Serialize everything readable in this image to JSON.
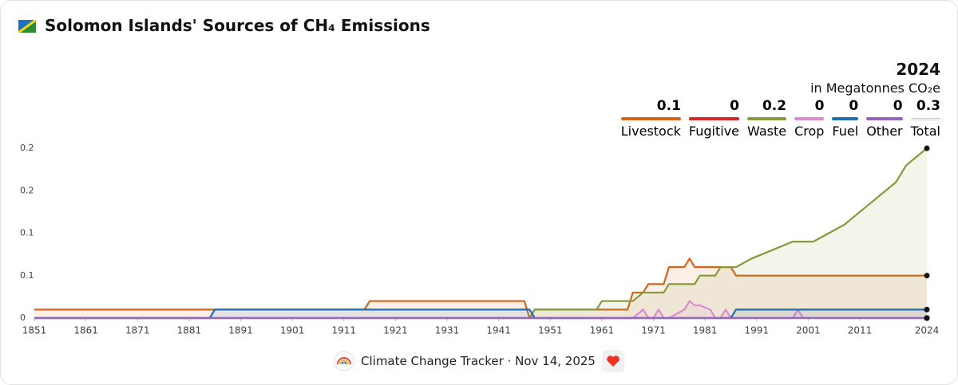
{
  "chart_data": {
    "type": "line",
    "title": "Solomon Islands' Sources of CH₄ Emissions",
    "latest_year": 2024,
    "unit": "in Megatonnes CO₂e",
    "x": [
      1851,
      1885,
      1886,
      1915,
      1916,
      1946,
      1947,
      1948,
      1960,
      1961,
      1966,
      1967,
      1969,
      1970,
      1971,
      1972,
      1973,
      1974,
      1977,
      1978,
      1979,
      1980,
      1982,
      1983,
      1984,
      1985,
      1986,
      1987,
      1990,
      1994,
      1998,
      1999,
      2000,
      2002,
      2005,
      2008,
      2010,
      2012,
      2014,
      2016,
      2018,
      2019,
      2020,
      2022,
      2024
    ],
    "xlim": [
      1851,
      2024
    ],
    "xticks": [
      1851,
      1861,
      1871,
      1881,
      1891,
      1901,
      1911,
      1921,
      1931,
      1941,
      1951,
      1961,
      1971,
      1981,
      1991,
      2001,
      2011,
      2024
    ],
    "ylim": [
      0,
      0.2
    ],
    "yticks": [
      0,
      {
        "value": 0.05,
        "label": "0.1"
      },
      0.1,
      {
        "value": 0.15,
        "label": "0.2"
      },
      0.2
    ],
    "series": [
      {
        "name": "Livestock",
        "color": "#d4661a",
        "latest_label": "0.1",
        "values": [
          0.01,
          0.01,
          0.01,
          0.01,
          0.02,
          0.02,
          0,
          0.01,
          0.01,
          0.01,
          0.01,
          0.03,
          0.03,
          0.04,
          0.04,
          0.04,
          0.04,
          0.06,
          0.06,
          0.07,
          0.06,
          0.06,
          0.06,
          0.06,
          0.06,
          0.06,
          0.06,
          0.05,
          0.05,
          0.05,
          0.05,
          0.05,
          0.05,
          0.05,
          0.05,
          0.05,
          0.05,
          0.05,
          0.05,
          0.05,
          0.05,
          0.05,
          0.05,
          0.05,
          0.05
        ]
      },
      {
        "name": "Fugitive",
        "color": "#d62728",
        "latest_label": "0",
        "values": [
          0,
          0,
          0,
          0,
          0,
          0,
          0,
          0,
          0,
          0,
          0,
          0,
          0,
          0,
          0,
          0,
          0,
          0,
          0,
          0,
          0,
          0,
          0,
          0,
          0,
          0,
          0,
          0,
          0,
          0,
          0,
          0,
          0,
          0,
          0,
          0,
          0,
          0,
          0,
          0,
          0,
          0,
          0,
          0,
          0
        ]
      },
      {
        "name": "Waste",
        "color": "#869a3c",
        "latest_label": "0.2",
        "values": [
          0,
          0,
          0,
          0,
          0,
          0,
          0,
          0.01,
          0.01,
          0.02,
          0.02,
          0.02,
          0.03,
          0.03,
          0.03,
          0.03,
          0.03,
          0.04,
          0.04,
          0.04,
          0.04,
          0.05,
          0.05,
          0.05,
          0.06,
          0.06,
          0.06,
          0.06,
          0.07,
          0.08,
          0.09,
          0.09,
          0.09,
          0.09,
          0.1,
          0.11,
          0.12,
          0.13,
          0.14,
          0.15,
          0.16,
          0.17,
          0.18,
          0.19,
          0.2
        ]
      },
      {
        "name": "Crop",
        "color": "#d98ccf",
        "latest_label": "0",
        "values": [
          0,
          0,
          0,
          0,
          0,
          0,
          0,
          0,
          0,
          0,
          0,
          0,
          0.01,
          0,
          0,
          0.01,
          0,
          0,
          0.01,
          0.02,
          0.015,
          0.015,
          0.01,
          0,
          0,
          0.01,
          0,
          0,
          0,
          0,
          0,
          0.01,
          0,
          0,
          0,
          0,
          0,
          0,
          0,
          0,
          0,
          0,
          0,
          0,
          0
        ]
      },
      {
        "name": "Fuel",
        "color": "#1f6fb0",
        "latest_label": "0",
        "values": [
          0,
          0,
          0.01,
          0.01,
          0.01,
          0.01,
          0.01,
          0,
          0,
          0,
          0,
          0,
          0,
          0,
          0,
          0,
          0,
          0,
          0,
          0,
          0,
          0,
          0,
          0,
          0,
          0,
          0,
          0.01,
          0.01,
          0.01,
          0.01,
          0.01,
          0.01,
          0.01,
          0.01,
          0.01,
          0.01,
          0.01,
          0.01,
          0.01,
          0.01,
          0.01,
          0.01,
          0.01,
          0.01
        ]
      },
      {
        "name": "Other",
        "color": "#9467bd",
        "latest_label": "0",
        "values": [
          0,
          0,
          0,
          0,
          0,
          0,
          0,
          0,
          0,
          0,
          0,
          0,
          0,
          0,
          0,
          0,
          0,
          0,
          0,
          0,
          0,
          0,
          0,
          0,
          0,
          0,
          0,
          0,
          0,
          0,
          0,
          0,
          0,
          0,
          0,
          0,
          0,
          0,
          0,
          0,
          0,
          0,
          0,
          0,
          0
        ]
      }
    ],
    "total": {
      "name": "Total",
      "label": "0.3"
    },
    "footer": "Climate Change Tracker · Nov 14, 2025"
  }
}
